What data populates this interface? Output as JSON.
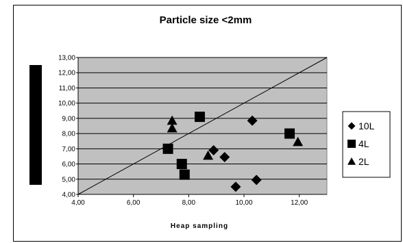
{
  "chart_data": {
    "type": "scatter",
    "title": "Particle size <2mm",
    "xlabel": "Heap sampling",
    "ylabel": "",
    "xlim": [
      4,
      13
    ],
    "ylim": [
      4,
      13
    ],
    "x_ticks": [
      "4,00",
      "6,00",
      "8,00",
      "10,00",
      "12,00"
    ],
    "y_ticks": [
      "4,00",
      "5,00",
      "6,00",
      "7,00",
      "8,00",
      "9,00",
      "10,00",
      "11,00",
      "12,00",
      "13,00"
    ],
    "grid": "horizontal",
    "plot_background": "#c0c0c0",
    "legend_position": "right",
    "reference_line": {
      "from": [
        4,
        4
      ],
      "to": [
        13,
        13
      ]
    },
    "series": [
      {
        "name": "10L",
        "marker": "diamond",
        "points": [
          [
            8.9,
            6.9
          ],
          [
            9.3,
            6.45
          ],
          [
            9.7,
            4.5
          ],
          [
            10.3,
            8.85
          ],
          [
            10.45,
            4.95
          ]
        ]
      },
      {
        "name": "4L",
        "marker": "square",
        "points": [
          [
            7.25,
            7.0
          ],
          [
            7.75,
            6.0
          ],
          [
            7.85,
            5.3
          ],
          [
            8.4,
            9.1
          ],
          [
            11.65,
            8.0
          ]
        ]
      },
      {
        "name": "2L",
        "marker": "triangle",
        "points": [
          [
            7.4,
            8.85
          ],
          [
            7.4,
            8.35
          ],
          [
            8.7,
            6.55
          ],
          [
            11.95,
            7.45
          ]
        ]
      }
    ]
  },
  "colors": {
    "marker": "#000000",
    "plot_bg": "#c0c0c0",
    "grid": "#000000"
  }
}
